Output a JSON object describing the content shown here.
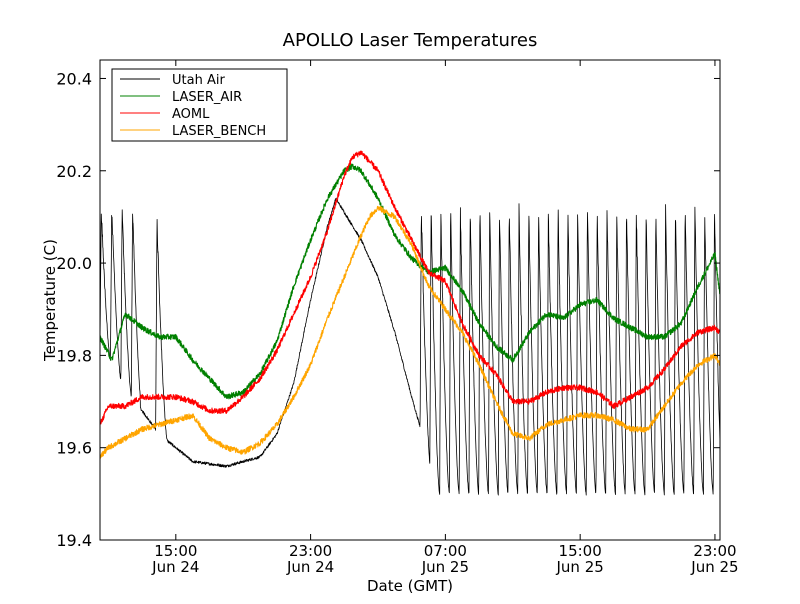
{
  "chart_data": {
    "type": "line",
    "title": "APOLLO Laser Temperatures",
    "xlabel": "Date (GMT)",
    "ylabel": "Temperature (C)",
    "xlim": [
      10.5,
      47.3
    ],
    "ylim": [
      19.4,
      20.44
    ],
    "x_unit": "hours since Jun 24 00:00 GMT",
    "y_ticks": [
      {
        "value": 19.4,
        "label": "19.4"
      },
      {
        "value": 19.6,
        "label": "19.6"
      },
      {
        "value": 19.8,
        "label": "19.8"
      },
      {
        "value": 20.0,
        "label": "20.0"
      },
      {
        "value": 20.2,
        "label": "20.2"
      },
      {
        "value": 20.4,
        "label": "20.4"
      }
    ],
    "x_ticks": [
      {
        "value": 15,
        "time": "15:00",
        "date": "Jun 24"
      },
      {
        "value": 23,
        "time": "23:00",
        "date": "Jun 24"
      },
      {
        "value": 31,
        "time": "07:00",
        "date": "Jun 25"
      },
      {
        "value": 39,
        "time": "15:00",
        "date": "Jun 25"
      },
      {
        "value": 47,
        "time": "23:00",
        "date": "Jun 25"
      }
    ],
    "legend_position": "top-left",
    "series": [
      {
        "name": "Utah Air",
        "color": "#000000",
        "baseline": {
          "x": [
            10.5,
            12,
            14,
            16,
            18,
            20,
            21,
            22,
            23,
            24,
            24.5,
            25,
            26,
            27,
            28,
            29,
            30,
            30.5,
            47.3
          ],
          "y": [
            19.83,
            19.73,
            19.63,
            19.57,
            19.56,
            19.58,
            19.63,
            19.74,
            19.92,
            20.08,
            20.14,
            20.11,
            20.05,
            19.97,
            19.85,
            19.71,
            19.58,
            19.5,
            19.5
          ]
        },
        "spikes": [
          {
            "start": 10.5,
            "end": 12.9,
            "period": 0.62,
            "peak": 20.13
          },
          {
            "start": 12.9,
            "end": 13.8,
            "period": 0.9,
            "peak": 19.55
          },
          {
            "start": 13.8,
            "end": 14.5,
            "period": 0.7,
            "peak": 20.11
          },
          {
            "start": 29.5,
            "end": 47.3,
            "period": 0.58,
            "peak": 20.13
          }
        ]
      },
      {
        "name": "LASER_AIR",
        "color": "#008000",
        "x": [
          10.5,
          11.2,
          12,
          13,
          14,
          15,
          16,
          17,
          18,
          19,
          20,
          21,
          22,
          23,
          24,
          25,
          25.5,
          26,
          27,
          28,
          29,
          30,
          31,
          32,
          33,
          34,
          35,
          36,
          37,
          38,
          39,
          40,
          41,
          42,
          43,
          44,
          45,
          46,
          47,
          47.3
        ],
        "y": [
          19.84,
          19.79,
          19.89,
          19.86,
          19.84,
          19.84,
          19.79,
          19.75,
          19.71,
          19.72,
          19.76,
          19.83,
          19.95,
          20.05,
          20.14,
          20.2,
          20.21,
          20.2,
          20.14,
          20.06,
          20.01,
          19.98,
          19.99,
          19.94,
          19.87,
          19.82,
          19.79,
          19.85,
          19.89,
          19.88,
          19.91,
          19.92,
          19.88,
          19.86,
          19.84,
          19.84,
          19.87,
          19.95,
          20.02,
          19.93
        ]
      },
      {
        "name": "AOML",
        "color": "#ff0000",
        "x": [
          10.5,
          11,
          12,
          13,
          14,
          15,
          16,
          17,
          18,
          19,
          20,
          21,
          22,
          23,
          24,
          25,
          25.5,
          26,
          27,
          28,
          29,
          30,
          31,
          32,
          33,
          34,
          35,
          36,
          37,
          38,
          39,
          40,
          41,
          42,
          43,
          44,
          45,
          46,
          47,
          47.3
        ],
        "y": [
          19.65,
          19.69,
          19.69,
          19.71,
          19.71,
          19.71,
          19.7,
          19.68,
          19.68,
          19.71,
          19.75,
          19.81,
          19.89,
          19.97,
          20.07,
          20.19,
          20.23,
          20.24,
          20.2,
          20.12,
          20.05,
          19.98,
          19.96,
          19.87,
          19.8,
          19.76,
          19.7,
          19.7,
          19.72,
          19.73,
          19.73,
          19.72,
          19.69,
          19.71,
          19.73,
          19.77,
          19.82,
          19.85,
          19.86,
          19.85
        ]
      },
      {
        "name": "LASER_BENCH",
        "color": "#ffa500",
        "x": [
          10.5,
          11,
          12,
          13,
          14,
          15,
          16,
          17,
          18,
          19,
          20,
          21,
          22,
          23,
          24,
          25,
          26,
          26.5,
          27,
          28,
          29,
          30,
          31,
          32,
          33,
          34,
          35,
          36,
          37,
          38,
          39,
          40,
          41,
          42,
          43,
          44,
          45,
          46,
          47,
          47.3
        ],
        "y": [
          19.58,
          19.6,
          19.62,
          19.64,
          19.65,
          19.66,
          19.67,
          19.62,
          19.6,
          19.59,
          19.61,
          19.65,
          19.71,
          19.78,
          19.88,
          19.97,
          20.06,
          20.1,
          20.12,
          20.1,
          20.04,
          19.95,
          19.9,
          19.85,
          19.78,
          19.7,
          19.63,
          19.62,
          19.65,
          19.66,
          19.67,
          19.67,
          19.66,
          19.64,
          19.64,
          19.69,
          19.74,
          19.78,
          19.8,
          19.78
        ]
      }
    ]
  }
}
